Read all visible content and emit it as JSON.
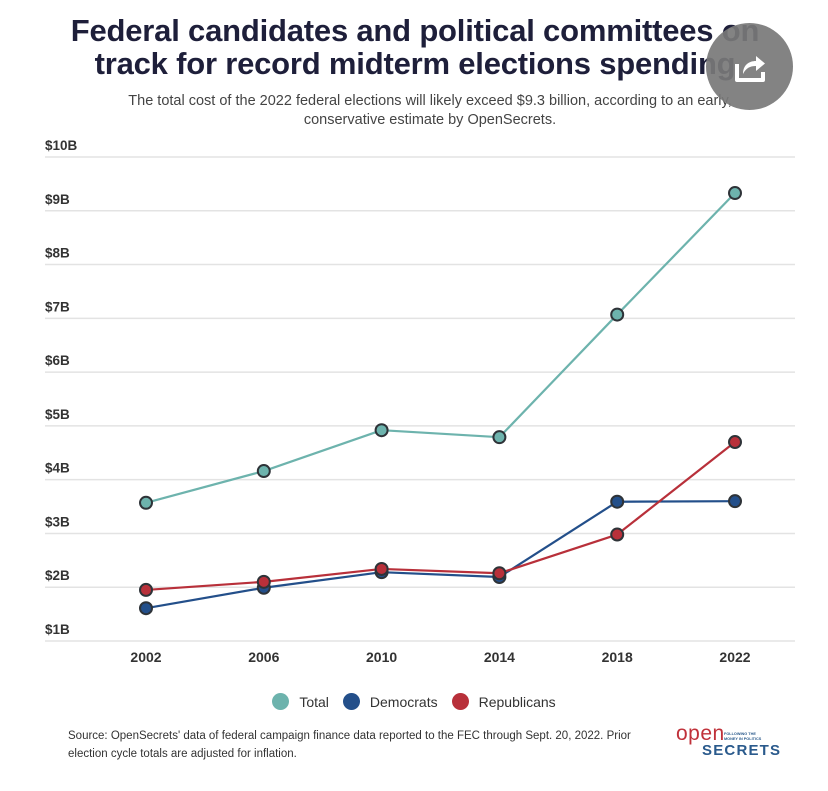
{
  "header": {
    "title": "Federal candidates and political committees on track for record midterm elections spending",
    "subtitle": "The total cost of the 2022 federal elections will likely exceed $9.3 billion, according to an early, conservative estimate by OpenSecrets."
  },
  "footer": {
    "source": "Source: OpenSecrets' data of federal campaign finance data reported to the FEC through Sept. 20, 2022. Prior election cycle totals are adjusted for inflation."
  },
  "logo": {
    "open": "open",
    "secrets": "SECRETS",
    "tagline": "FOLLOWING THE MONEY IN POLITICS"
  },
  "share_button": {
    "icon": "share-icon"
  },
  "colors": {
    "total": "#6db3ad",
    "democrats": "#234f8a",
    "republicans": "#b8303a",
    "grid": "#e3e3e3",
    "marker_stroke": "#2e3338"
  },
  "chart_data": {
    "type": "line",
    "title": "Federal candidates and political committees on track for record midterm elections spending",
    "subtitle": "The total cost of the 2022 federal elections will likely exceed $9.3 billion, according to an early, conservative estimate by OpenSecrets.",
    "xlabel": "",
    "ylabel": "",
    "x": [
      "2002",
      "2006",
      "2010",
      "2014",
      "2018",
      "2022"
    ],
    "ylim": [
      1,
      10
    ],
    "yticks": [
      {
        "value": 10,
        "label": "$10B"
      },
      {
        "value": 9,
        "label": "$9B"
      },
      {
        "value": 8,
        "label": "$8B"
      },
      {
        "value": 7,
        "label": "$7B"
      },
      {
        "value": 6,
        "label": "$6B"
      },
      {
        "value": 5,
        "label": "$5B"
      },
      {
        "value": 4,
        "label": "$4B"
      },
      {
        "value": 3,
        "label": "$3B"
      },
      {
        "value": 2,
        "label": "$2B"
      },
      {
        "value": 1,
        "label": "$1B"
      }
    ],
    "grid": true,
    "legend_position": "bottom-center",
    "series": [
      {
        "name": "Total",
        "color_key": "total",
        "values": [
          3.57,
          4.16,
          4.92,
          4.79,
          7.07,
          9.33
        ]
      },
      {
        "name": "Democrats",
        "color_key": "democrats",
        "values": [
          1.61,
          1.99,
          2.28,
          2.19,
          3.59,
          3.6
        ]
      },
      {
        "name": "Republicans",
        "color_key": "republicans",
        "values": [
          1.95,
          2.1,
          2.34,
          2.26,
          2.98,
          4.7
        ]
      }
    ]
  }
}
